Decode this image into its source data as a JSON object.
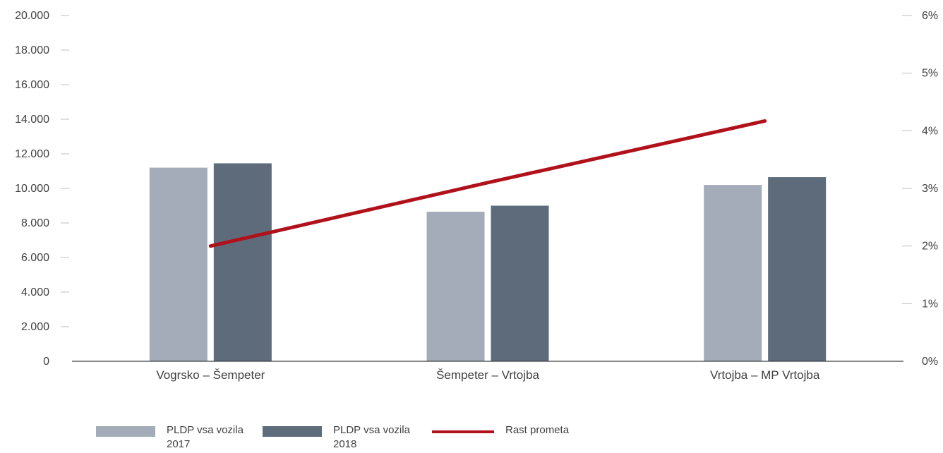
{
  "chart_data": {
    "type": "bar",
    "categories": [
      "Vogrsko – Šempeter",
      "Šempeter – Vrtojba",
      "Vrtojba – MP Vrtojba"
    ],
    "series": [
      {
        "name": "PLDP vsa vozila 2017",
        "type": "bar",
        "axis": "left",
        "color": "#a3acb8",
        "values": [
          11200,
          8650,
          10200
        ]
      },
      {
        "name": "PLDP vsa vozila 2018",
        "type": "bar",
        "axis": "left",
        "color": "#5d6b7b",
        "values": [
          11450,
          9000,
          10650
        ]
      },
      {
        "name": "Rast prometa",
        "type": "line",
        "axis": "right",
        "color": "#b0111b",
        "values": [
          0.02,
          0.031,
          0.0417
        ]
      }
    ],
    "y_left": {
      "ylim": [
        0,
        20000
      ],
      "ticks": [
        0,
        2000,
        4000,
        6000,
        8000,
        10000,
        12000,
        14000,
        16000,
        18000,
        20000
      ],
      "tick_labels": [
        "0",
        "2.000",
        "4.000",
        "6.000",
        "8.000",
        "10.000",
        "12.000",
        "14.000",
        "16.000",
        "18.000",
        "20.000"
      ]
    },
    "y_right": {
      "ylim": [
        0,
        0.06
      ],
      "ticks": [
        0,
        0.01,
        0.02,
        0.03,
        0.04,
        0.05,
        0.06
      ],
      "tick_labels": [
        "0%",
        "1%",
        "2%",
        "3%",
        "4%",
        "5%",
        "6%"
      ]
    },
    "grid": false,
    "legend_position": "bottom-left",
    "legend": [
      {
        "label": "PLDP vsa vozila 2017",
        "color": "#a3acb8",
        "kind": "bar"
      },
      {
        "label": "PLDP vsa vozila 2018",
        "color": "#5d6b7b",
        "kind": "bar"
      },
      {
        "label": "Rast prometa",
        "color": "#b0111b",
        "kind": "line"
      }
    ]
  }
}
